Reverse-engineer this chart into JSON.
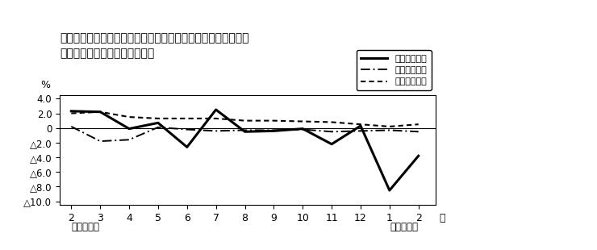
{
  "title_line1": "第４図　賃金、労働時間、常用雇用指数　対前年同月比の推移",
  "title_line2": "（規模５人以上　調査産業計）",
  "year_label_left": "平成２３年",
  "year_label_right": "平成２４年",
  "ylabel": "%",
  "ylim": [
    -10.5,
    4.5
  ],
  "yticks": [
    4.0,
    2.0,
    0.0,
    -2.0,
    -4.0,
    -6.0,
    -8.0,
    -10.0
  ],
  "ytick_labels": [
    "4.0",
    "2.0",
    "0",
    "△2.0",
    "△4.0",
    "△6.0",
    "△8.0",
    "△10.0"
  ],
  "x_tick_labels": [
    "2",
    "3",
    "4",
    "5",
    "6",
    "7",
    "8",
    "9",
    "10",
    "11",
    "12",
    "1",
    "2"
  ],
  "genkin_label": "現金給与総額",
  "jitsu_label": "総実労働時間",
  "koyo_label": "常用雇用指数",
  "genkin_values": [
    2.3,
    2.2,
    -0.1,
    0.7,
    -2.6,
    2.5,
    -0.5,
    -0.4,
    -0.1,
    -2.2,
    0.3,
    -8.5,
    -3.8
  ],
  "jitsu_values": [
    0.2,
    -1.8,
    -1.6,
    0.1,
    -0.2,
    -0.4,
    -0.3,
    -0.3,
    -0.2,
    -0.5,
    -0.4,
    -0.3,
    -0.5
  ],
  "koyo_values": [
    2.0,
    2.2,
    1.5,
    1.3,
    1.3,
    1.3,
    1.0,
    1.0,
    0.9,
    0.8,
    0.5,
    0.2,
    0.5
  ],
  "background_color": "#ffffff",
  "border_color": "#000000"
}
